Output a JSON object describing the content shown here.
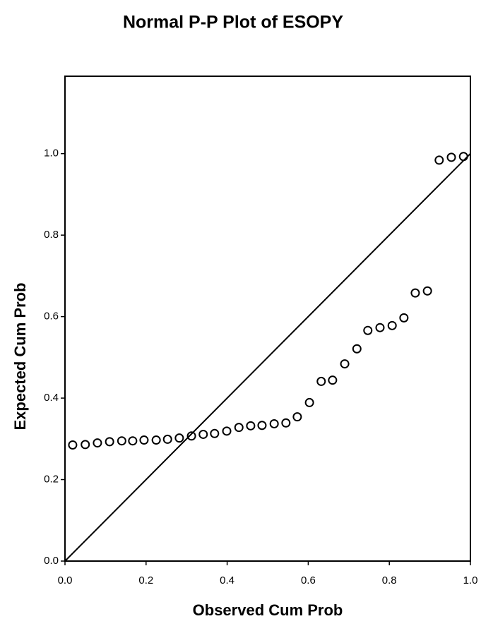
{
  "chart_data": {
    "type": "scatter",
    "title": "Normal P-P Plot of ESOPY",
    "x_label": "Observed Cum Prob",
    "y_label": "Expected Cum Prob",
    "xlim": [
      0,
      1.0
    ],
    "ylim": [
      0,
      1.19
    ],
    "xticks": [
      {
        "value": 0,
        "label": "0.0"
      },
      {
        "value": 0.2,
        "label": "0.2"
      },
      {
        "value": 0.4,
        "label": "0.4"
      },
      {
        "value": 0.6,
        "label": "0.6"
      },
      {
        "value": 0.8,
        "label": "0.8"
      },
      {
        "value": 1.0,
        "label": "1.0"
      }
    ],
    "yticks": [
      {
        "value": 0,
        "label": "0.0"
      },
      {
        "value": 0.2,
        "label": "0.2"
      },
      {
        "value": 0.4,
        "label": "0.4"
      },
      {
        "value": 0.6,
        "label": "0.6"
      },
      {
        "value": 0.8,
        "label": "0.8"
      },
      {
        "value": 1.0,
        "label": "1.0"
      }
    ],
    "reference_line": true,
    "color": "#000000",
    "x": [
      0.019,
      0.05,
      0.08,
      0.11,
      0.14,
      0.167,
      0.195,
      0.225,
      0.253,
      0.282,
      0.312,
      0.341,
      0.369,
      0.399,
      0.429,
      0.458,
      0.486,
      0.516,
      0.545,
      0.573,
      0.603,
      0.632,
      0.66,
      0.69,
      0.72,
      0.747,
      0.777,
      0.807,
      0.836,
      0.864,
      0.894,
      0.923,
      0.953,
      0.983
    ],
    "values": [
      0.285,
      0.286,
      0.29,
      0.293,
      0.295,
      0.295,
      0.297,
      0.297,
      0.299,
      0.302,
      0.307,
      0.311,
      0.313,
      0.319,
      0.328,
      0.332,
      0.333,
      0.337,
      0.339,
      0.354,
      0.389,
      0.441,
      0.444,
      0.484,
      0.521,
      0.566,
      0.573,
      0.578,
      0.597,
      0.658,
      0.663,
      0.984,
      0.991,
      0.993
    ]
  }
}
